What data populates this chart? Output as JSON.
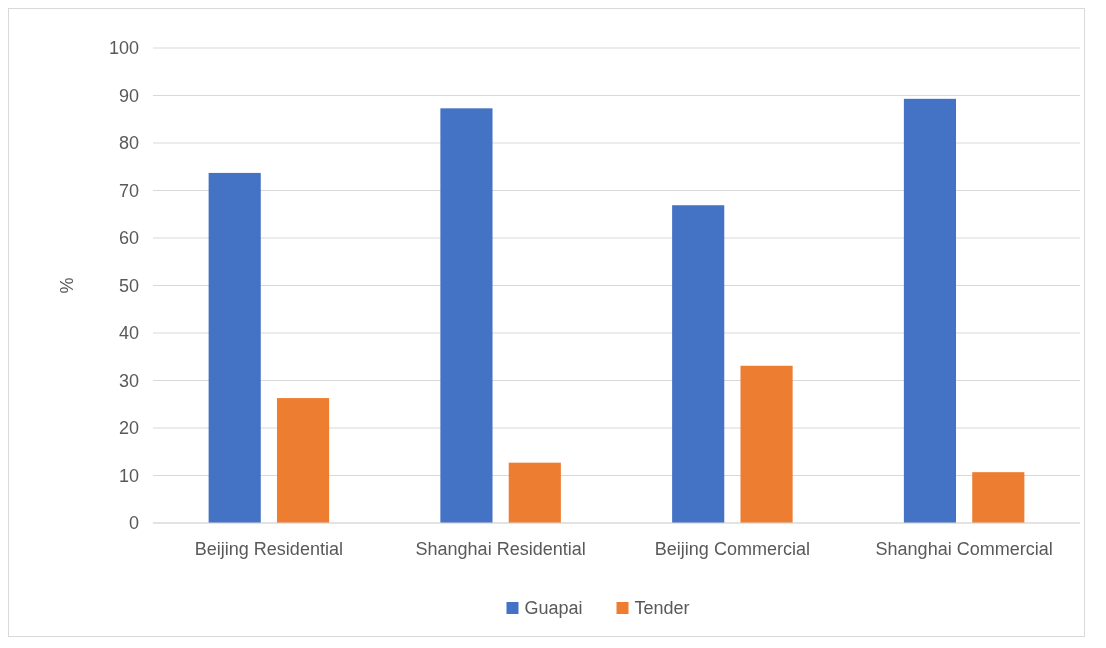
{
  "chart_data": {
    "type": "bar",
    "ylabel": "%",
    "categories": [
      "Beijing Residential",
      "Shanghai Residential",
      "Beijing Commercial",
      "Shanghai Commercial"
    ],
    "series": [
      {
        "name": "Guapai",
        "color": "#4472c4",
        "values": [
          73.7,
          87.3,
          66.9,
          89.3
        ]
      },
      {
        "name": "Tender",
        "color": "#ed7d31",
        "values": [
          26.3,
          12.7,
          33.1,
          10.7
        ]
      }
    ],
    "ylim": [
      0,
      100
    ],
    "yticks": [
      0,
      10,
      20,
      30,
      40,
      50,
      60,
      70,
      80,
      90,
      100
    ],
    "grid": "y",
    "legend": "bottom"
  }
}
